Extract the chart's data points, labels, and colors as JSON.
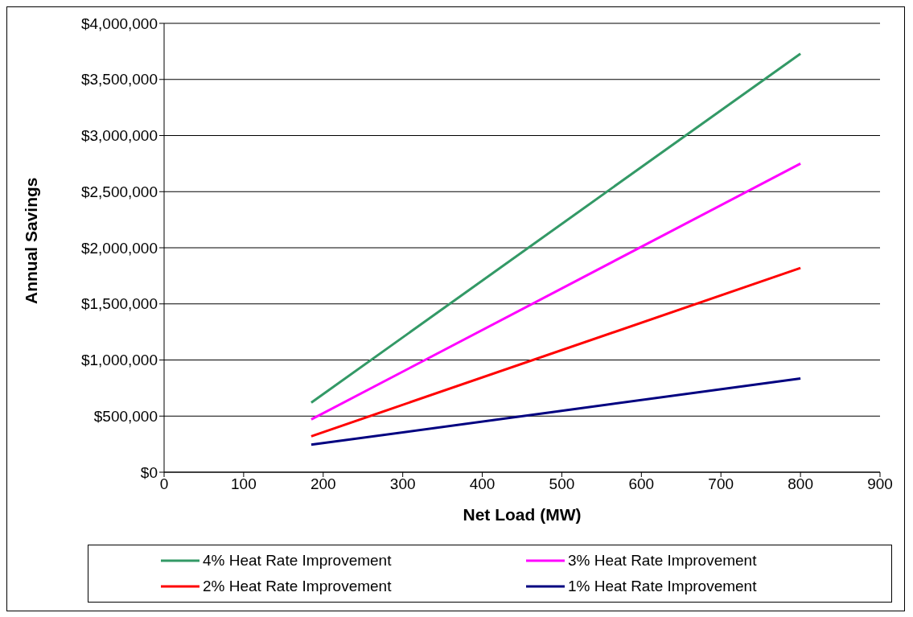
{
  "chart_data": {
    "type": "line",
    "xlabel": "Net Load (MW)",
    "ylabel": "Annual Savings",
    "x": [
      185,
      800
    ],
    "series": [
      {
        "name": "4% Heat Rate Improvement",
        "color": "#339966",
        "values": [
          620000,
          3730000
        ]
      },
      {
        "name": "3% Heat Rate Improvement",
        "color": "#ff00ff",
        "values": [
          470000,
          2750000
        ]
      },
      {
        "name": "2% Heat Rate Improvement",
        "color": "#ff0000",
        "values": [
          320000,
          1820000
        ]
      },
      {
        "name": "1% Heat Rate Improvement",
        "color": "#000080",
        "values": [
          245000,
          835000
        ]
      }
    ],
    "xlim": [
      0,
      900
    ],
    "xticks": [
      0,
      100,
      200,
      300,
      400,
      500,
      600,
      700,
      800,
      900
    ],
    "ylim": [
      0,
      4000000
    ],
    "yticks": [
      {
        "value": 0,
        "label": "$0"
      },
      {
        "value": 500000,
        "label": "$500,000"
      },
      {
        "value": 1000000,
        "label": "$1,000,000"
      },
      {
        "value": 1500000,
        "label": "$1,500,000"
      },
      {
        "value": 2000000,
        "label": "$2,000,000"
      },
      {
        "value": 2500000,
        "label": "$2,500,000"
      },
      {
        "value": 3000000,
        "label": "$3,000,000"
      },
      {
        "value": 3500000,
        "label": "$3,500,000"
      },
      {
        "value": 4000000,
        "label": "$4,000,000"
      }
    ],
    "grid": "y",
    "legend": "bottom",
    "marker": "none",
    "line_style": "solid"
  }
}
